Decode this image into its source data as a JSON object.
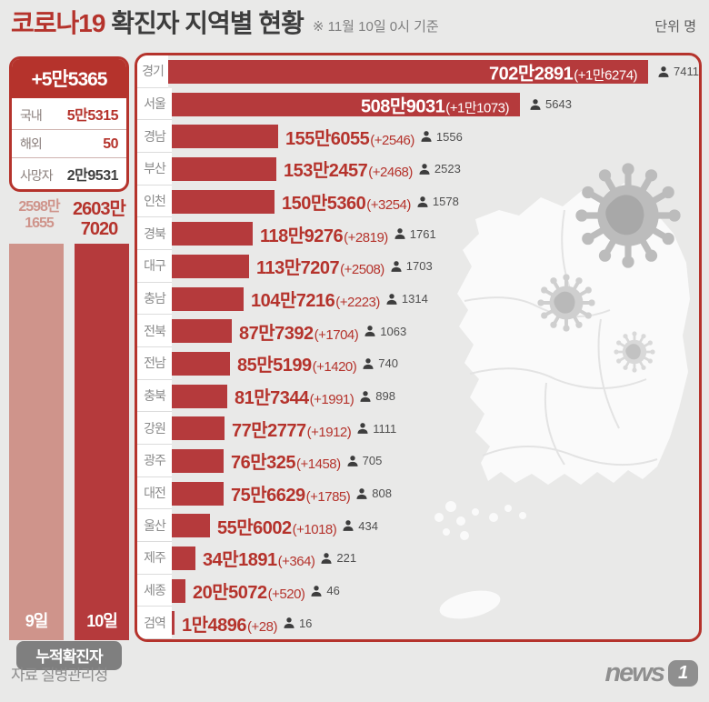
{
  "header": {
    "title_accent": "코로나19",
    "title_rest": " 확진자 지역별 현황",
    "as_of": "※ 11월 10일 0시 기준",
    "unit": "단위 명"
  },
  "summary": {
    "daily_total": "+5만5365",
    "rows": [
      {
        "label": "국내",
        "value": "5만5315"
      },
      {
        "label": "해외",
        "value": "50"
      },
      {
        "label": "사망자",
        "value": "2만9531"
      }
    ],
    "cumulative": {
      "prev_label": "9일",
      "prev_lines": [
        "2598만",
        "1655"
      ],
      "curr_label": "10일",
      "curr_lines": [
        "2603만",
        "7020"
      ],
      "caption": "누적확진자"
    }
  },
  "chart_data": [
    {
      "type": "bar",
      "orientation": "horizontal",
      "title": "코로나19 확진자 지역별 현황",
      "as_of": "11월 10일 0시 기준",
      "unit": "명",
      "max_value": 7022891,
      "regions": [
        {
          "name": "경기",
          "total": 7022891,
          "total_display": "702만2891",
          "new_display": "+1만6274",
          "deaths": 7411
        },
        {
          "name": "서울",
          "total": 5089031,
          "total_display": "508만9031",
          "new_display": "+1만1073",
          "deaths": 5643
        },
        {
          "name": "경남",
          "total": 1556055,
          "total_display": "155만6055",
          "new_display": "+2546",
          "deaths": 1556
        },
        {
          "name": "부산",
          "total": 1532457,
          "total_display": "153만2457",
          "new_display": "+2468",
          "deaths": 2523
        },
        {
          "name": "인천",
          "total": 1505360,
          "total_display": "150만5360",
          "new_display": "+3254",
          "deaths": 1578
        },
        {
          "name": "경북",
          "total": 1189276,
          "total_display": "118만9276",
          "new_display": "+2819",
          "deaths": 1761
        },
        {
          "name": "대구",
          "total": 1137207,
          "total_display": "113만7207",
          "new_display": "+2508",
          "deaths": 1703
        },
        {
          "name": "충남",
          "total": 1047216,
          "total_display": "104만7216",
          "new_display": "+2223",
          "deaths": 1314
        },
        {
          "name": "전북",
          "total": 877392,
          "total_display": "87만7392",
          "new_display": "+1704",
          "deaths": 1063
        },
        {
          "name": "전남",
          "total": 855199,
          "total_display": "85만5199",
          "new_display": "+1420",
          "deaths": 740
        },
        {
          "name": "충북",
          "total": 817344,
          "total_display": "81만7344",
          "new_display": "+1991",
          "deaths": 898
        },
        {
          "name": "강원",
          "total": 772777,
          "total_display": "77만2777",
          "new_display": "+1912",
          "deaths": 1111
        },
        {
          "name": "광주",
          "total": 760325,
          "total_display": "76만325",
          "new_display": "+1458",
          "deaths": 705
        },
        {
          "name": "대전",
          "total": 756629,
          "total_display": "75만6629",
          "new_display": "+1785",
          "deaths": 808
        },
        {
          "name": "울산",
          "total": 556002,
          "total_display": "55만6002",
          "new_display": "+1018",
          "deaths": 434
        },
        {
          "name": "제주",
          "total": 341891,
          "total_display": "34만1891",
          "new_display": "+364",
          "deaths": 221
        },
        {
          "name": "세종",
          "total": 205072,
          "total_display": "20만5072",
          "new_display": "+520",
          "deaths": 46
        },
        {
          "name": "검역",
          "total": 14896,
          "total_display": "1만4896",
          "new_display": "+28",
          "deaths": 16
        }
      ]
    },
    {
      "type": "bar",
      "orientation": "vertical",
      "caption": "누적확진자",
      "categories": [
        "9일",
        "10일"
      ],
      "values": [
        25981655,
        26037020
      ],
      "value_displays": [
        "2598만1655",
        "2603만7020"
      ]
    }
  ],
  "footer": {
    "source": "자료 질병관리청",
    "logo_text": "news",
    "logo_badge": "1"
  },
  "colors": {
    "accent": "#b5332c",
    "bar": "#b53a3c",
    "bar_prev": "#cf948b",
    "page_bg": "#e9e9e8",
    "pill_bg": "#7f7f7f",
    "logo_gray": "#8f8f8f",
    "deaths_icon": "#3d3d3d",
    "label_gray": "#8a8a8a"
  }
}
